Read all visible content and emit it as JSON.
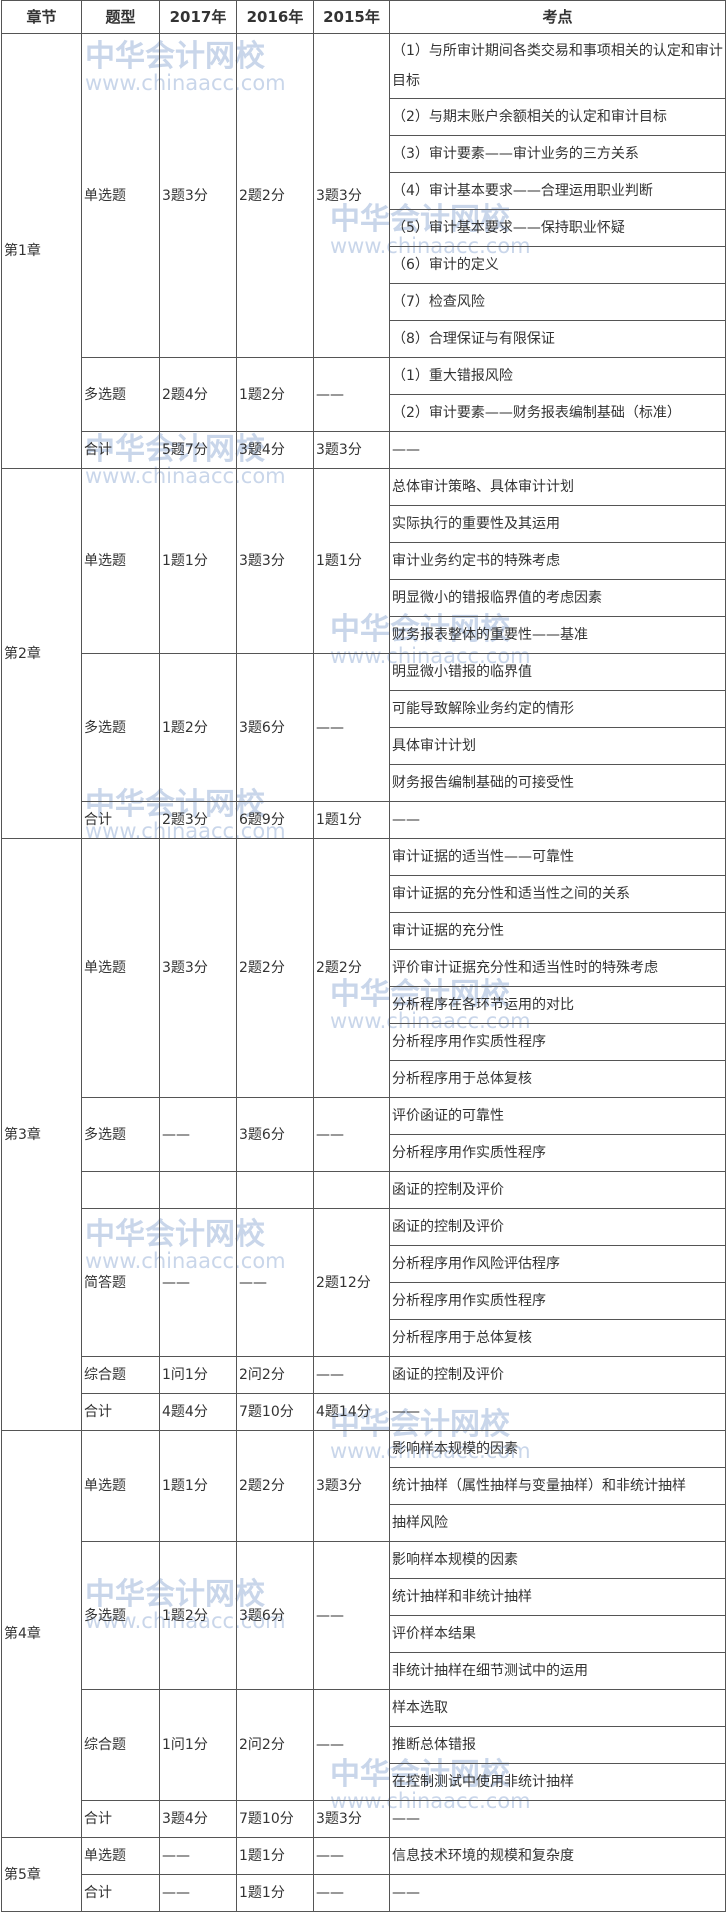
{
  "header": [
    "章节",
    "题型",
    "2017年",
    "2016年",
    "2015年",
    "考点"
  ],
  "watermark": {
    "name": "中华会计网校",
    "url": "www.chinaacc.com"
  },
  "chapters": [
    {
      "name": "第1章",
      "groups": [
        {
          "type": "单选题",
          "y2017": "3题3分",
          "y2016": "2题2分",
          "y2015": "3题3分",
          "points": [
            "（1）与所审计期间各类交易和事项相关的认定和审计目标",
            "（2）与期末账户余额相关的认定和审计目标",
            "（3）审计要素——审计业务的三方关系",
            "（4）审计基本要求——合理运用职业判断",
            "（5）审计基本要求——保持职业怀疑",
            "（6）审计的定义",
            "（7）检查风险",
            "（8）合理保证与有限保证"
          ]
        },
        {
          "type": "多选题",
          "y2017": "2题4分",
          "y2016": "1题2分",
          "y2015": "——",
          "points": [
            "（1）重大错报风险",
            "（2）审计要素——财务报表编制基础（标准）"
          ]
        },
        {
          "type": "合计",
          "y2017": "5题7分",
          "y2016": "3题4分",
          "y2015": "3题3分",
          "points": [
            "——"
          ]
        }
      ]
    },
    {
      "name": "第2章",
      "groups": [
        {
          "type": "单选题",
          "y2017": "1题1分",
          "y2016": "3题3分",
          "y2015": "1题1分",
          "points": [
            "总体审计策略、具体审计计划",
            "实际执行的重要性及其运用",
            "审计业务约定书的特殊考虑",
            "明显微小的错报临界值的考虑因素",
            "财务报表整体的重要性——基准"
          ]
        },
        {
          "type": "多选题",
          "y2017": "1题2分",
          "y2016": "3题6分",
          "y2015": "——",
          "points": [
            "明显微小错报的临界值",
            "可能导致解除业务约定的情形",
            "具体审计计划",
            "财务报告编制基础的可接受性"
          ]
        },
        {
          "type": "合计",
          "y2017": "2题3分",
          "y2016": "6题9分",
          "y2015": "1题1分",
          "points": [
            "——"
          ]
        }
      ]
    },
    {
      "name": "第3章",
      "groups": [
        {
          "type": "单选题",
          "y2017": "3题3分",
          "y2016": "2题2分",
          "y2015": "2题2分",
          "points": [
            "审计证据的适当性——可靠性",
            "审计证据的充分性和适当性之间的关系",
            "审计证据的充分性",
            "评价审计证据充分性和适当性时的特殊考虑",
            "分析程序在各环节运用的对比",
            "分析程序用作实质性程序",
            "分析程序用于总体复核"
          ]
        },
        {
          "type": "多选题",
          "y2017": "——",
          "y2016": "3题6分",
          "y2015": "——",
          "points": [
            "评价函证的可靠性",
            "分析程序用作实质性程序"
          ]
        },
        {
          "type": null,
          "y2017": null,
          "y2016": null,
          "y2015": null,
          "points": [
            "函证的控制及评价"
          ]
        },
        {
          "type": "简答题",
          "y2017": "——",
          "y2016": "——",
          "y2015": "2题12分",
          "points": [
            "函证的控制及评价",
            "分析程序用作风险评估程序",
            "分析程序用作实质性程序",
            "分析程序用于总体复核"
          ]
        },
        {
          "type": "综合题",
          "y2017": "1问1分",
          "y2016": "2问2分",
          "y2015": "——",
          "points": [
            "函证的控制及评价"
          ]
        },
        {
          "type": "合计",
          "y2017": "4题4分",
          "y2016": "7题10分",
          "y2015": "4题14分",
          "points": [
            "——"
          ]
        }
      ]
    },
    {
      "name": "第4章",
      "groups": [
        {
          "type": "单选题",
          "y2017": "1题1分",
          "y2016": "2题2分",
          "y2015": "3题3分",
          "points": [
            "影响样本规模的因素",
            "统计抽样（属性抽样与变量抽样）和非统计抽样",
            "抽样风险"
          ]
        },
        {
          "type": "多选题",
          "y2017": "1题2分",
          "y2016": "3题6分",
          "y2015": "——",
          "points": [
            "影响样本规模的因素",
            "统计抽样和非统计抽样",
            "评价样本结果",
            "非统计抽样在细节测试中的运用"
          ]
        },
        {
          "type": "综合题",
          "y2017": "1问1分",
          "y2016": "2问2分",
          "y2015": "——",
          "points": [
            "样本选取",
            "推断总体错报",
            "在控制测试中使用非统计抽样"
          ]
        },
        {
          "type": "合计",
          "y2017": "3题4分",
          "y2016": "7题10分",
          "y2015": "3题3分",
          "points": [
            "——"
          ]
        }
      ]
    },
    {
      "name": "第5章",
      "groups": [
        {
          "type": "单选题",
          "y2017": "——",
          "y2016": "1题1分",
          "y2015": "——",
          "points": [
            "信息技术环境的规模和复杂度"
          ]
        },
        {
          "type": "合计",
          "y2017": "——",
          "y2016": "1题1分",
          "y2015": "——",
          "points": [
            "——"
          ]
        }
      ]
    }
  ]
}
